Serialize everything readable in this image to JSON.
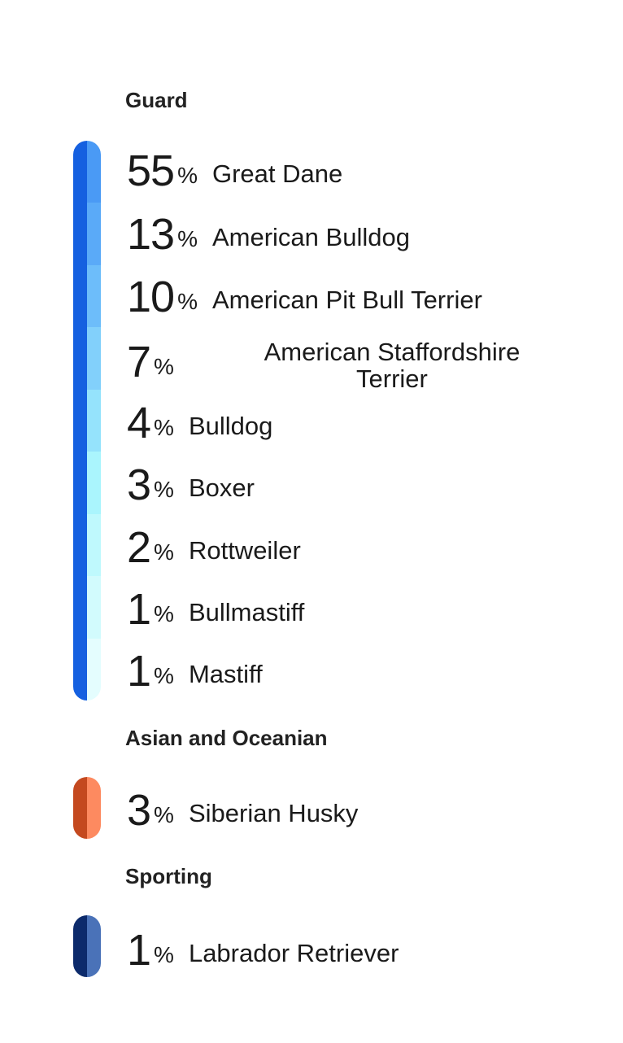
{
  "groups": [
    {
      "title": "Guard",
      "colors": {
        "dark": "#1560e0",
        "segments": [
          "#4a9af5",
          "#5aaaf8",
          "#6dbdfa",
          "#82d0fb",
          "#95e3fc",
          "#aaf5fd",
          "#bff9fd",
          "#d2fbfd",
          "#e4fdfe"
        ]
      },
      "items": [
        {
          "percent": "55",
          "unit": "%",
          "name": "Great Dane"
        },
        {
          "percent": "13",
          "unit": "%",
          "name": "American Bulldog"
        },
        {
          "percent": "10",
          "unit": "%",
          "name": "American Pit Bull Terrier"
        },
        {
          "percent": "7",
          "unit": "%",
          "name": "American Staffordshire Terrier"
        },
        {
          "percent": "4",
          "unit": "%",
          "name": "Bulldog"
        },
        {
          "percent": "3",
          "unit": "%",
          "name": "Boxer"
        },
        {
          "percent": "2",
          "unit": "%",
          "name": "Rottweiler"
        },
        {
          "percent": "1",
          "unit": "%",
          "name": "Bullmastiff"
        },
        {
          "percent": "1",
          "unit": "%",
          "name": "Mastiff"
        }
      ]
    },
    {
      "title": "Asian and Oceanian",
      "colors": {
        "dark": "#c4491f",
        "segments": [
          "#fd8a60"
        ]
      },
      "items": [
        {
          "percent": "3",
          "unit": "%",
          "name": "Siberian Husky"
        }
      ]
    },
    {
      "title": "Sporting",
      "colors": {
        "dark": "#0c2a6b",
        "segments": [
          "#4a72b8"
        ]
      },
      "items": [
        {
          "percent": "1",
          "unit": "%",
          "name": "Labrador Retriever"
        }
      ]
    }
  ]
}
